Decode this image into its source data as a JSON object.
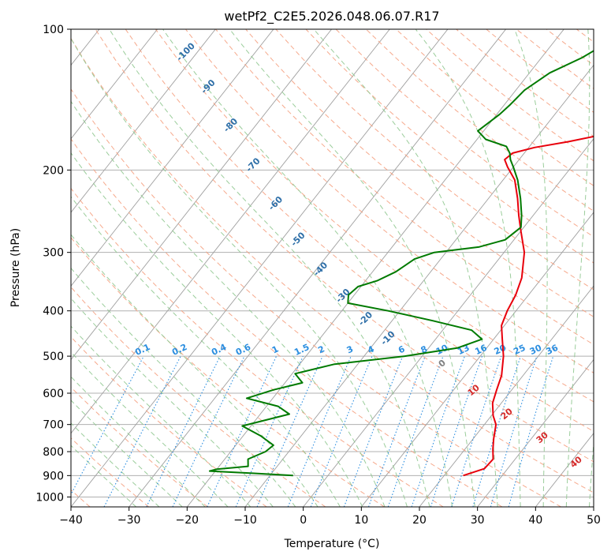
{
  "chart_data": {
    "type": "line",
    "subtype": "skew-t log-p diagram",
    "title": "wetPf2_C2E5.2026.048.06.07.R17",
    "xlabel": "Temperature (°C)",
    "ylabel": "Pressure (hPa)",
    "xlim": [
      -40,
      50
    ],
    "ylim": [
      1050,
      100
    ],
    "y_scale": "log",
    "x_ticks": [
      -40,
      -30,
      -20,
      -10,
      0,
      10,
      20,
      30,
      40,
      50
    ],
    "y_ticks": [
      100,
      200,
      300,
      400,
      500,
      600,
      700,
      800,
      900,
      1000
    ],
    "grid": true,
    "colors": {
      "temperature": "#e8000b",
      "dewpoint": "#007a00",
      "isotherm": "#a0a0a0",
      "dry_adiabat": "#f5a080",
      "moist_adiabat": "#90c890",
      "mixing_ratio": "#2b8ee0",
      "dry_label": "#2e6fa8",
      "moist_label_warm": "#d42a2a",
      "moist_label_zero": "#808080",
      "isobar": "#b0b0b0"
    },
    "series": [
      {
        "key": "temperature",
        "points": [
          [
            23.3,
            900
          ],
          [
            26.0,
            870
          ],
          [
            26.2,
            830
          ],
          [
            24.8,
            790
          ],
          [
            23.5,
            750
          ],
          [
            22.0,
            700
          ],
          [
            20.3,
            670
          ],
          [
            18.5,
            630
          ],
          [
            17.4,
            590
          ],
          [
            16.3,
            550
          ],
          [
            14.0,
            500
          ],
          [
            11.5,
            460
          ],
          [
            9.5,
            430
          ],
          [
            8.5,
            400
          ],
          [
            7.8,
            370
          ],
          [
            6.5,
            340
          ],
          [
            3.5,
            300
          ],
          [
            0.0,
            270
          ],
          [
            -2.5,
            250
          ],
          [
            -5.0,
            230
          ],
          [
            -8.0,
            210
          ],
          [
            -11.0,
            197
          ],
          [
            -12.5,
            190
          ],
          [
            -12.0,
            184
          ],
          [
            -9.0,
            179
          ],
          [
            -4.0,
            174
          ],
          [
            1.0,
            168
          ],
          [
            4.5,
            160
          ],
          [
            6.0,
            150
          ],
          [
            6.8,
            140
          ],
          [
            8.0,
            125
          ],
          [
            10.0,
            115
          ],
          [
            12.5,
            108
          ],
          [
            15.0,
            100
          ]
        ]
      },
      {
        "key": "dewpoint",
        "points": [
          [
            -6.0,
            900
          ],
          [
            -13.0,
            890
          ],
          [
            -21.0,
            880
          ],
          [
            -20.0,
            872
          ],
          [
            -15.0,
            860
          ],
          [
            -16.0,
            830
          ],
          [
            -14.0,
            800
          ],
          [
            -13.5,
            775
          ],
          [
            -17.0,
            740
          ],
          [
            -21.5,
            705
          ],
          [
            -15.0,
            665
          ],
          [
            -18.0,
            640
          ],
          [
            -24.5,
            615
          ],
          [
            -21.0,
            590
          ],
          [
            -17.0,
            570
          ],
          [
            -19.5,
            545
          ],
          [
            -14.0,
            520
          ],
          [
            -3.0,
            500
          ],
          [
            5.0,
            480
          ],
          [
            8.0,
            460
          ],
          [
            5.0,
            440
          ],
          [
            -3.0,
            420
          ],
          [
            -12.0,
            400
          ],
          [
            -20.0,
            385
          ],
          [
            -21.0,
            370
          ],
          [
            -20.5,
            355
          ],
          [
            -18.0,
            345
          ],
          [
            -16.0,
            330
          ],
          [
            -14.5,
            310
          ],
          [
            -12.0,
            300
          ],
          [
            -5.0,
            292
          ],
          [
            -1.5,
            282
          ],
          [
            -0.5,
            265
          ],
          [
            -2.0,
            250
          ],
          [
            -4.5,
            230
          ],
          [
            -7.5,
            210
          ],
          [
            -10.0,
            197
          ],
          [
            -11.5,
            190
          ],
          [
            -12.5,
            184
          ],
          [
            -14.0,
            178
          ],
          [
            -18.5,
            172
          ],
          [
            -21.0,
            165
          ],
          [
            -19.5,
            152
          ],
          [
            -19.0,
            145
          ],
          [
            -18.5,
            135
          ],
          [
            -16.5,
            124
          ],
          [
            -13.0,
            115
          ],
          [
            -11.0,
            108
          ],
          [
            -8.0,
            100
          ]
        ]
      }
    ],
    "dry_adiabat_labels": [
      "-100",
      "-90",
      "-80",
      "-70",
      "-60",
      "-50",
      "-40",
      "-30",
      "-20",
      "-10"
    ],
    "mixing_ratio_labels": [
      "0.1",
      "0.2",
      "0.4",
      "0.6",
      "1",
      "1.5",
      "2",
      "3",
      "4",
      "6",
      "8",
      "10",
      "13",
      "16",
      "20",
      "25",
      "30",
      "36"
    ],
    "mixing_ratio_values": [
      0.1,
      0.2,
      0.4,
      0.6,
      1,
      1.5,
      2,
      3,
      4,
      6,
      8,
      10,
      13,
      16,
      20,
      25,
      30,
      36
    ],
    "moist_adiabat_labels": [
      "0",
      "10",
      "20",
      "30",
      "40"
    ]
  }
}
